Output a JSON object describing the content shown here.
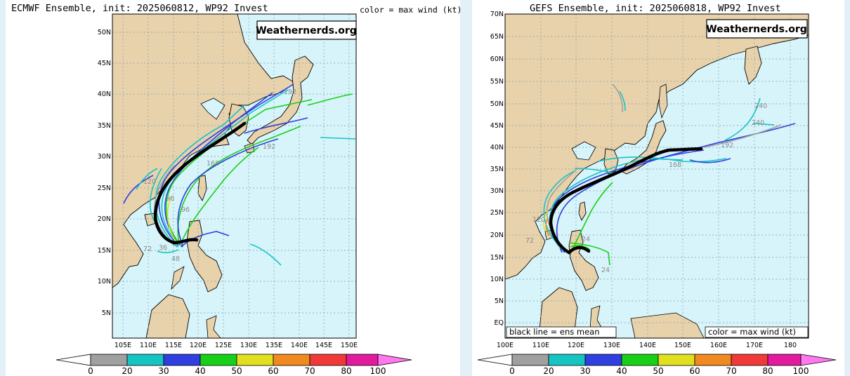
{
  "left": {
    "title": "ECMWF Ensemble, init: 2025060812, WP92 Invest",
    "color_label": "color = max wind (kt)",
    "watermark": "Weathernerds.org",
    "lat_labels": [
      "50N",
      "45N",
      "40N",
      "35N",
      "30N",
      "25N",
      "20N",
      "15N",
      "10N",
      "5N"
    ],
    "lon_labels": [
      "105E",
      "110E",
      "115E",
      "120E",
      "125E",
      "130E",
      "135E",
      "140E",
      "145E",
      "150E"
    ],
    "track_hour_labels": [
      "192",
      "168",
      "96",
      "96",
      "192",
      "120",
      "72",
      "48",
      "36"
    ],
    "colorbar_ticks": [
      "0",
      "20",
      "30",
      "40",
      "50",
      "60",
      "70",
      "80",
      "100"
    ]
  },
  "right": {
    "title": "GEFS Ensemble, init: 2025060818, WP92 Invest",
    "color_label": "color = max wind (kt)",
    "watermark": "Weathernerds.org",
    "lat_labels": [
      "70N",
      "65N",
      "60N",
      "55N",
      "50N",
      "45N",
      "40N",
      "35N",
      "30N",
      "25N",
      "20N",
      "15N",
      "10N",
      "5N",
      "EQ"
    ],
    "lon_labels": [
      "100E",
      "110E",
      "120E",
      "130E",
      "140E",
      "150E",
      "160E",
      "170E",
      "180"
    ],
    "track_hour_labels": [
      "192",
      "240",
      "240",
      "168",
      "120",
      "24",
      "72",
      "24"
    ],
    "mean_line_label": "black line = ens mean",
    "colorbar_ticks": [
      "0",
      "20",
      "30",
      "40",
      "50",
      "60",
      "70",
      "80",
      "100"
    ]
  },
  "colorbar_colors": {
    "0-20": "#a0a0a0",
    "20-30": "#16c4c4",
    "30-40": "#2f3fe0",
    "40-50": "#18d018",
    "50-60": "#e0e020",
    "60-70": "#f08a20",
    "70-80": "#f03a3a",
    "80-100": "#e21a9e",
    "100+": "#ff78f0"
  },
  "map_colors": {
    "ocean": "#d6f4fa",
    "land": "#e8d2ac",
    "coast": "#000000",
    "grid": "#7fa0a8",
    "mean_track": "#000000"
  }
}
